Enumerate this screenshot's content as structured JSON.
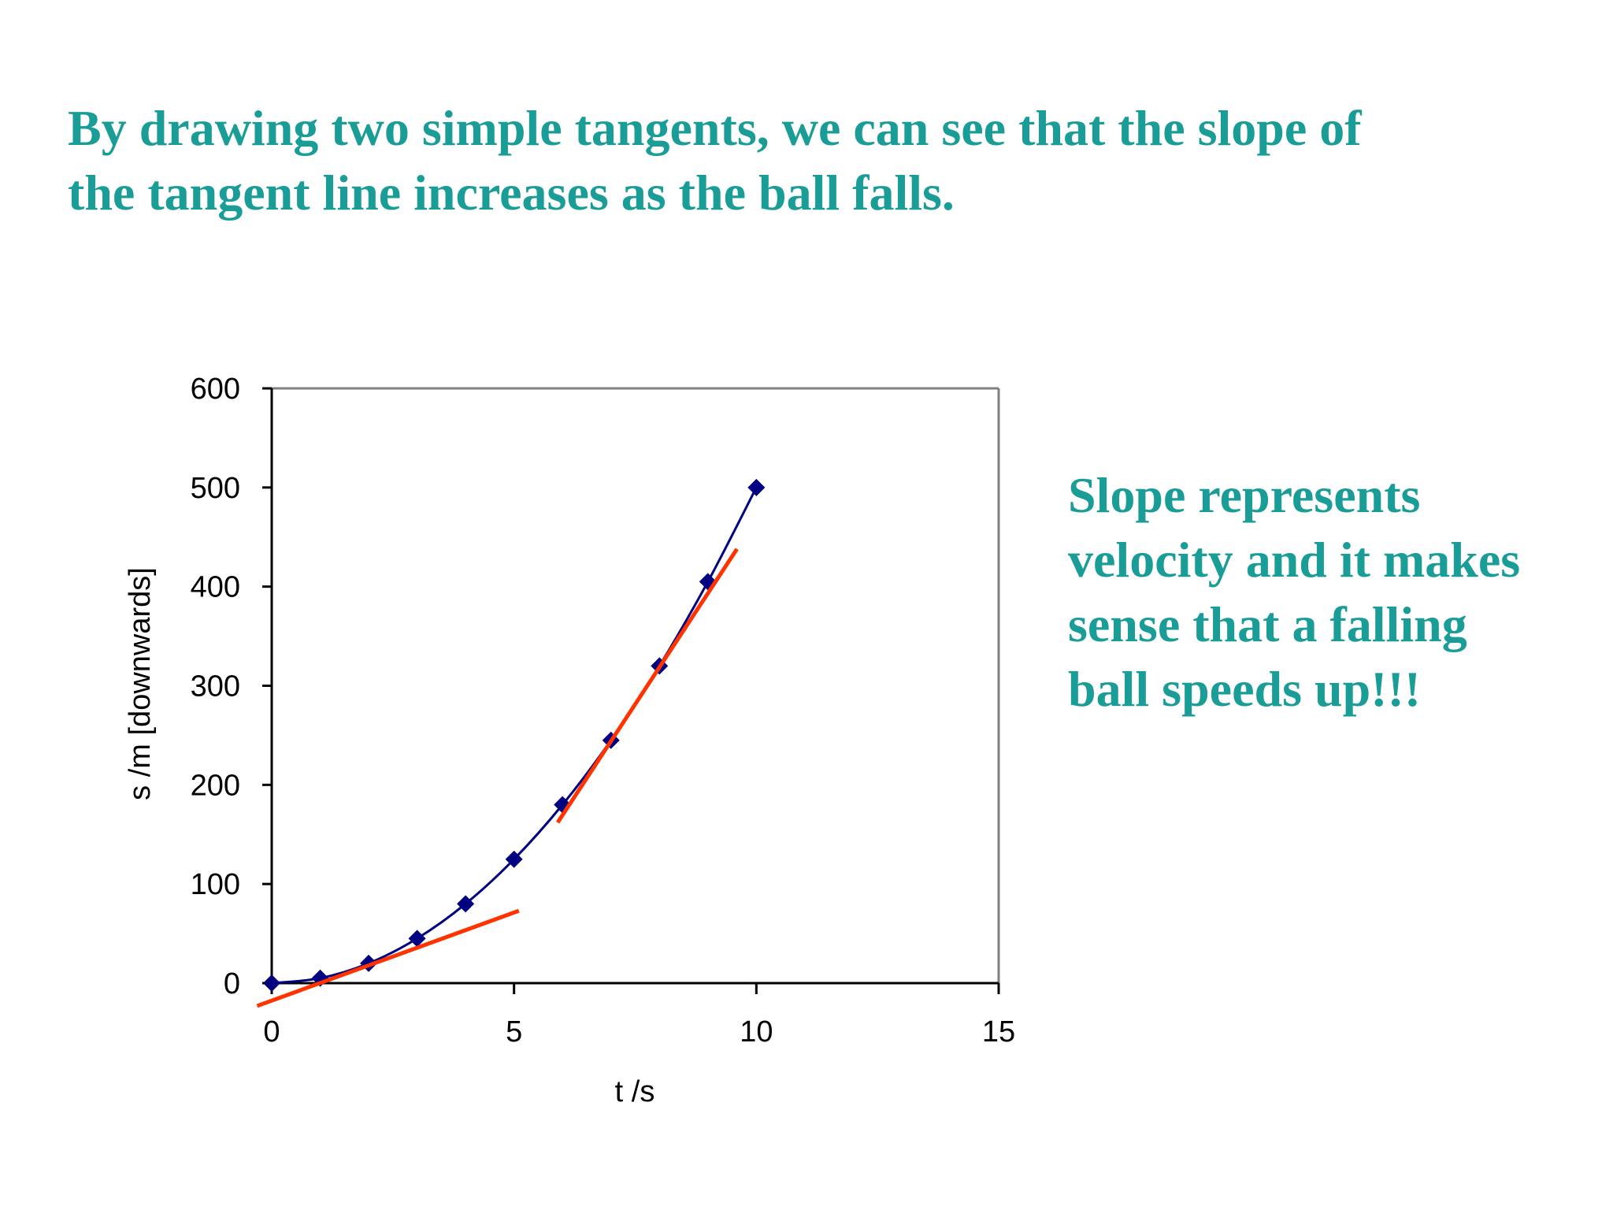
{
  "heading": {
    "line1": "By drawing two simple tangents, we can see that the slope of",
    "line2": "the tangent line increases as the ball falls."
  },
  "side_note": {
    "line1": "Slope represents",
    "line2": "velocity and it makes",
    "line3": "sense that a falling",
    "line4": "ball speeds up!!!"
  },
  "colors": {
    "text_accent": "#1a9c97",
    "series": "#000080",
    "tangent": "#ff3300",
    "axis": "#000000",
    "frame": "#808080"
  },
  "chart_data": {
    "type": "scatter",
    "title": "",
    "xlabel": "t /s",
    "ylabel": "s /m [downwards]",
    "xlim": [
      0,
      15
    ],
    "ylim": [
      0,
      600
    ],
    "xticks": [
      0,
      5,
      10,
      15
    ],
    "yticks": [
      0,
      100,
      200,
      300,
      400,
      500,
      600
    ],
    "grid": false,
    "legend": "none",
    "series": [
      {
        "marker": "diamond",
        "line": "smooth",
        "x": [
          0,
          1,
          2,
          3,
          4,
          5,
          6,
          7,
          8,
          9,
          10
        ],
        "y": [
          0,
          5,
          20,
          45,
          80,
          125,
          180,
          245,
          320,
          405,
          500
        ]
      }
    ],
    "tangents": [
      {
        "x": [
          -0.3,
          5.1
        ],
        "y": [
          -23,
          73
        ]
      },
      {
        "x": [
          5.9,
          9.6
        ],
        "y": [
          162,
          438
        ]
      }
    ]
  }
}
